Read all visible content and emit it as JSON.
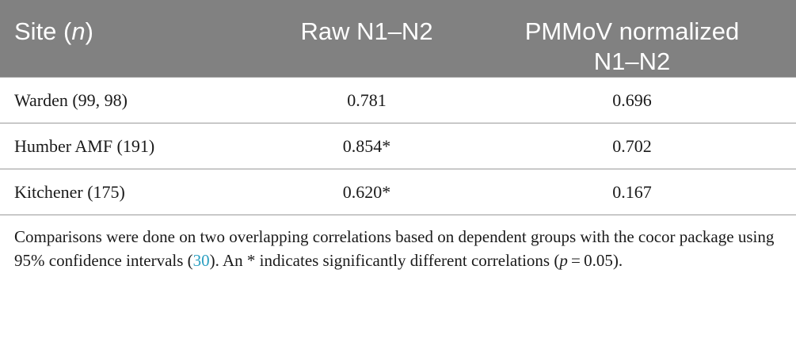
{
  "table": {
    "headers": {
      "site_main": "Site (",
      "site_n": "n",
      "site_close": ")",
      "raw": "Raw N1–N2",
      "pmmov_line1": "PMMoV normalized",
      "pmmov_line2": "N1–N2"
    },
    "rows": [
      {
        "site": "Warden (99, 98)",
        "raw": "0.781",
        "pmmov": "0.696"
      },
      {
        "site": "Humber AMF (191)",
        "raw": "0.854*",
        "pmmov": "0.702"
      },
      {
        "site": "Kitchener (175)",
        "raw": "0.620*",
        "pmmov": "0.167"
      }
    ]
  },
  "footnote": {
    "part1": "Comparisons were done on two overlapping correlations based on dependent groups with the cocor package using 95% confidence intervals (",
    "ref": "30",
    "part2": "). An * indicates significantly different correlations (",
    "p": "p",
    "part3": " = 0.05)."
  },
  "colors": {
    "header_bg": "#818181",
    "header_text": "#ffffff",
    "link": "#2a9fc1"
  }
}
